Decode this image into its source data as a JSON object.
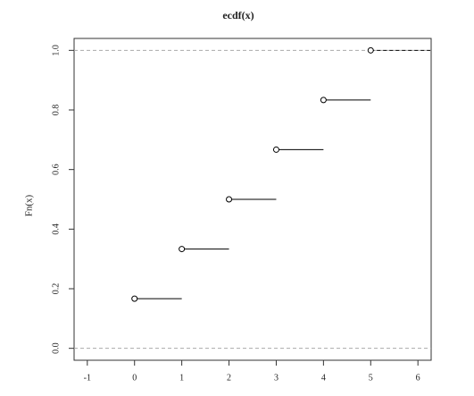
{
  "chart_data": {
    "type": "ecdf",
    "title": "ecdf(x)",
    "y_label": "Fn(x)",
    "x": [
      0,
      1,
      2,
      3,
      4,
      5
    ],
    "values": [
      0.1667,
      0.3333,
      0.5,
      0.6667,
      0.8333,
      1.0
    ],
    "color": "#000000",
    "xlim": [
      -1.28,
      6.28
    ],
    "xticks": [
      -1,
      0,
      1,
      2,
      3,
      4,
      5,
      6
    ],
    "ylim": [
      -0.04,
      1.04
    ],
    "yticks": [
      {
        "value": 0,
        "label": "0.0"
      },
      0.2,
      0.4,
      0.6,
      0.8,
      {
        "value": 1,
        "label": "1.0"
      }
    ]
  }
}
